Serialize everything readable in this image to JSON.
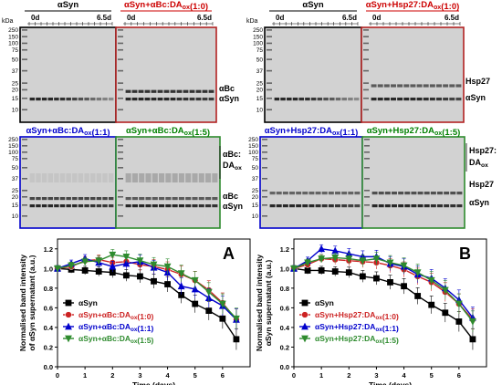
{
  "gel_panels": [
    {
      "title": "αSyn",
      "title_color": "#000000",
      "border_color": "#000000",
      "day_start": "0d",
      "day_end": "6.5d",
      "bands": [
        {
          "name": "αSyn",
          "strengths": [
            0.85,
            0.85,
            0.85,
            0.85,
            0.82,
            0.82,
            0.78,
            0.72,
            0.65,
            0.6,
            0.52,
            0.45,
            0.4,
            0.35
          ]
        }
      ]
    },
    {
      "title": "αSyn+αBc:DAox(1:0)",
      "title_color": "#cc0000",
      "border_color": "#b22222",
      "day_start": "0d",
      "day_end": "6.5d",
      "bands": [
        {
          "name": "αBc",
          "strengths": [
            0.8,
            0.8,
            0.8,
            0.8,
            0.8,
            0.8,
            0.8,
            0.8,
            0.8,
            0.8,
            0.8,
            0.8,
            0.8,
            0.8
          ]
        },
        {
          "name": "αSyn",
          "strengths": [
            0.85,
            0.85,
            0.85,
            0.85,
            0.85,
            0.85,
            0.85,
            0.85,
            0.8,
            0.8,
            0.78,
            0.78,
            0.75,
            0.75
          ]
        }
      ]
    },
    {
      "title": "αSyn",
      "title_color": "#000000",
      "border_color": "#000000",
      "day_start": "0d",
      "day_end": "6.5d",
      "bands": [
        {
          "name": "αSyn",
          "strengths": [
            0.85,
            0.85,
            0.85,
            0.85,
            0.82,
            0.82,
            0.78,
            0.72,
            0.65,
            0.6,
            0.52,
            0.45,
            0.4,
            0.35
          ]
        }
      ]
    },
    {
      "title": "αSyn+Hsp27:DAox(1:0)",
      "title_color": "#cc0000",
      "border_color": "#b22222",
      "day_start": "0d",
      "day_end": "6.5d",
      "bands": [
        {
          "name": "Hsp27",
          "strengths": [
            0.6,
            0.6,
            0.6,
            0.6,
            0.6,
            0.6,
            0.6,
            0.6,
            0.6,
            0.6,
            0.6,
            0.6,
            0.6,
            0.6
          ]
        },
        {
          "name": "αSyn",
          "strengths": [
            0.85,
            0.85,
            0.85,
            0.85,
            0.85,
            0.85,
            0.85,
            0.85,
            0.82,
            0.8,
            0.78,
            0.75,
            0.72,
            0.7
          ]
        }
      ]
    },
    {
      "title": "αSyn+αBc:DAox(1:1)",
      "title_color": "#0000cc",
      "border_color": "#0000cc",
      "day_start": "",
      "day_end": "",
      "bands": [
        {
          "name": "αBc:DAox",
          "strengths": [
            0.25,
            0.25,
            0.25,
            0.25,
            0.25,
            0.25,
            0.25,
            0.25,
            0.25,
            0.25,
            0.25,
            0.25,
            0.25,
            0.25
          ]
        },
        {
          "name": "αBc",
          "strengths": [
            0.7,
            0.7,
            0.7,
            0.7,
            0.7,
            0.7,
            0.7,
            0.7,
            0.7,
            0.7,
            0.7,
            0.7,
            0.7,
            0.7
          ]
        },
        {
          "name": "αSyn",
          "strengths": [
            0.85,
            0.85,
            0.85,
            0.85,
            0.85,
            0.85,
            0.85,
            0.85,
            0.82,
            0.8,
            0.8,
            0.78,
            0.78,
            0.75
          ]
        }
      ]
    },
    {
      "title": "αSyn+αBc:DAox(1:5)",
      "title_color": "#008000",
      "border_color": "#2e8b2e",
      "day_start": "",
      "day_end": "",
      "bands": [
        {
          "name": "αBc:DAox",
          "strengths": [
            0.45,
            0.45,
            0.45,
            0.45,
            0.45,
            0.45,
            0.45,
            0.45,
            0.45,
            0.45,
            0.45,
            0.45,
            0.45,
            0.45
          ]
        },
        {
          "name": "αBc",
          "strengths": [
            0.6,
            0.6,
            0.6,
            0.6,
            0.6,
            0.6,
            0.6,
            0.6,
            0.6,
            0.6,
            0.6,
            0.6,
            0.6,
            0.6
          ]
        },
        {
          "name": "αSyn",
          "strengths": [
            0.85,
            0.85,
            0.85,
            0.85,
            0.85,
            0.85,
            0.85,
            0.85,
            0.85,
            0.82,
            0.82,
            0.8,
            0.8,
            0.8
          ]
        }
      ]
    },
    {
      "title": "αSyn+Hsp27:DAox(1:1)",
      "title_color": "#0000cc",
      "border_color": "#0000cc",
      "day_start": "",
      "day_end": "",
      "bands": [
        {
          "name": "Hsp27",
          "strengths": [
            0.55,
            0.55,
            0.55,
            0.55,
            0.55,
            0.55,
            0.55,
            0.55,
            0.55,
            0.55,
            0.55,
            0.55,
            0.55,
            0.55
          ]
        },
        {
          "name": "αSyn",
          "strengths": [
            0.85,
            0.85,
            0.85,
            0.85,
            0.85,
            0.85,
            0.85,
            0.82,
            0.8,
            0.8,
            0.78,
            0.75,
            0.72,
            0.7
          ]
        }
      ]
    },
    {
      "title": "αSyn+Hsp27:DAox(1:5)",
      "title_color": "#008000",
      "border_color": "#2e8b2e",
      "day_start": "",
      "day_end": "",
      "bands": [
        {
          "name": "Hsp27",
          "strengths": [
            0.65,
            0.65,
            0.65,
            0.65,
            0.65,
            0.65,
            0.65,
            0.65,
            0.65,
            0.65,
            0.65,
            0.65,
            0.65,
            0.65
          ]
        },
        {
          "name": "αSyn",
          "strengths": [
            0.85,
            0.85,
            0.85,
            0.85,
            0.85,
            0.85,
            0.85,
            0.85,
            0.85,
            0.82,
            0.82,
            0.8,
            0.8,
            0.8
          ]
        }
      ]
    }
  ],
  "gel_labels": {
    "kda": "kDa",
    "markers": [
      "250",
      "150",
      "100",
      "75",
      "50",
      "37",
      "25",
      "20",
      "15",
      "10"
    ],
    "side_labels": {
      "row1_left": [
        "αBc",
        "αSyn"
      ],
      "row1_right": [
        "Hsp27",
        "αSyn"
      ],
      "row2_left": [
        "αBc:",
        "DAox",
        "αBc",
        "αSyn"
      ],
      "row2_right": [
        "Hsp27:",
        "DAox",
        "Hsp27",
        "αSyn"
      ]
    }
  },
  "chart_data": [
    {
      "type": "line",
      "panel_letter": "A",
      "ylabel": "Normalised band intensity of αSyn supernatant (a.u.)",
      "xlabel": "Time (days)",
      "x": [
        0,
        0.5,
        1,
        1.5,
        2,
        2.5,
        3,
        3.5,
        4,
        4.5,
        5,
        5.5,
        6,
        6.5
      ],
      "xticks": [
        "0",
        "1",
        "2",
        "3",
        "4",
        "5",
        "6"
      ],
      "yticks": [
        "0.0",
        "0.2",
        "0.4",
        "0.6",
        "0.8",
        "1.0",
        "1.2"
      ],
      "ylim": [
        0,
        1.3
      ],
      "xlim": [
        0,
        7
      ],
      "legend_position": "bottom-left",
      "series": [
        {
          "name": "αSyn",
          "color": "#000000",
          "marker": "square",
          "values": [
            1.0,
            0.99,
            0.98,
            0.97,
            0.96,
            0.93,
            0.92,
            0.87,
            0.84,
            0.73,
            0.64,
            0.57,
            0.49,
            0.28
          ]
        },
        {
          "name": "αSyn+αBc:DAox(1:0)",
          "color": "#cc2222",
          "marker": "circle",
          "values": [
            1.0,
            1.02,
            1.08,
            1.09,
            1.06,
            1.07,
            1.04,
            1.02,
            0.99,
            0.94,
            0.88,
            0.78,
            0.65,
            0.48
          ]
        },
        {
          "name": "αSyn+αBc:DAox(1:1)",
          "color": "#0000cc",
          "marker": "triangle-up",
          "values": [
            1.0,
            1.05,
            1.1,
            1.06,
            1.02,
            1.05,
            1.07,
            1.01,
            0.96,
            0.82,
            0.79,
            0.7,
            0.62,
            0.48
          ]
        },
        {
          "name": "αSyn+αBc:DAox(1:5)",
          "color": "#2e8b2e",
          "marker": "triangle-down",
          "values": [
            1.0,
            1.03,
            1.07,
            1.08,
            1.14,
            1.12,
            1.08,
            1.04,
            1.02,
            0.95,
            0.88,
            0.76,
            0.64,
            0.49
          ]
        }
      ]
    },
    {
      "type": "line",
      "panel_letter": "B",
      "ylabel": "Normalised band intensity αSyn supernatant (a.u.)",
      "xlabel": "Time (days)",
      "x": [
        0,
        0.5,
        1,
        1.5,
        2,
        2.5,
        3,
        3.5,
        4,
        4.5,
        5,
        5.5,
        6,
        6.5
      ],
      "xticks": [
        "0",
        "1",
        "2",
        "3",
        "4",
        "5",
        "6"
      ],
      "yticks": [
        "0.0",
        "0.2",
        "0.4",
        "0.6",
        "0.8",
        "1.0",
        "1.2"
      ],
      "ylim": [
        0,
        1.3
      ],
      "xlim": [
        0,
        7
      ],
      "legend_position": "bottom-left",
      "series": [
        {
          "name": "αSyn",
          "color": "#000000",
          "marker": "square",
          "values": [
            1.0,
            0.98,
            0.98,
            0.97,
            0.96,
            0.92,
            0.9,
            0.86,
            0.82,
            0.72,
            0.63,
            0.55,
            0.46,
            0.28
          ]
        },
        {
          "name": "αSyn+Hsp27:DAox(1:0)",
          "color": "#cc2222",
          "marker": "circle",
          "values": [
            1.0,
            1.04,
            1.1,
            1.09,
            1.08,
            1.07,
            1.06,
            1.03,
            0.99,
            0.92,
            0.86,
            0.76,
            0.64,
            0.48
          ]
        },
        {
          "name": "αSyn+Hsp27:DAox(1:1)",
          "color": "#0000cc",
          "marker": "triangle-up",
          "values": [
            1.0,
            1.08,
            1.2,
            1.18,
            1.15,
            1.12,
            1.12,
            1.05,
            1.02,
            0.94,
            0.9,
            0.8,
            0.68,
            0.5
          ]
        },
        {
          "name": "αSyn+Hsp27:DAox(1:5)",
          "color": "#2e8b2e",
          "marker": "triangle-down",
          "values": [
            1.0,
            1.06,
            1.1,
            1.11,
            1.1,
            1.08,
            1.1,
            1.06,
            1.03,
            0.96,
            0.88,
            0.78,
            0.64,
            0.46
          ]
        }
      ]
    }
  ]
}
